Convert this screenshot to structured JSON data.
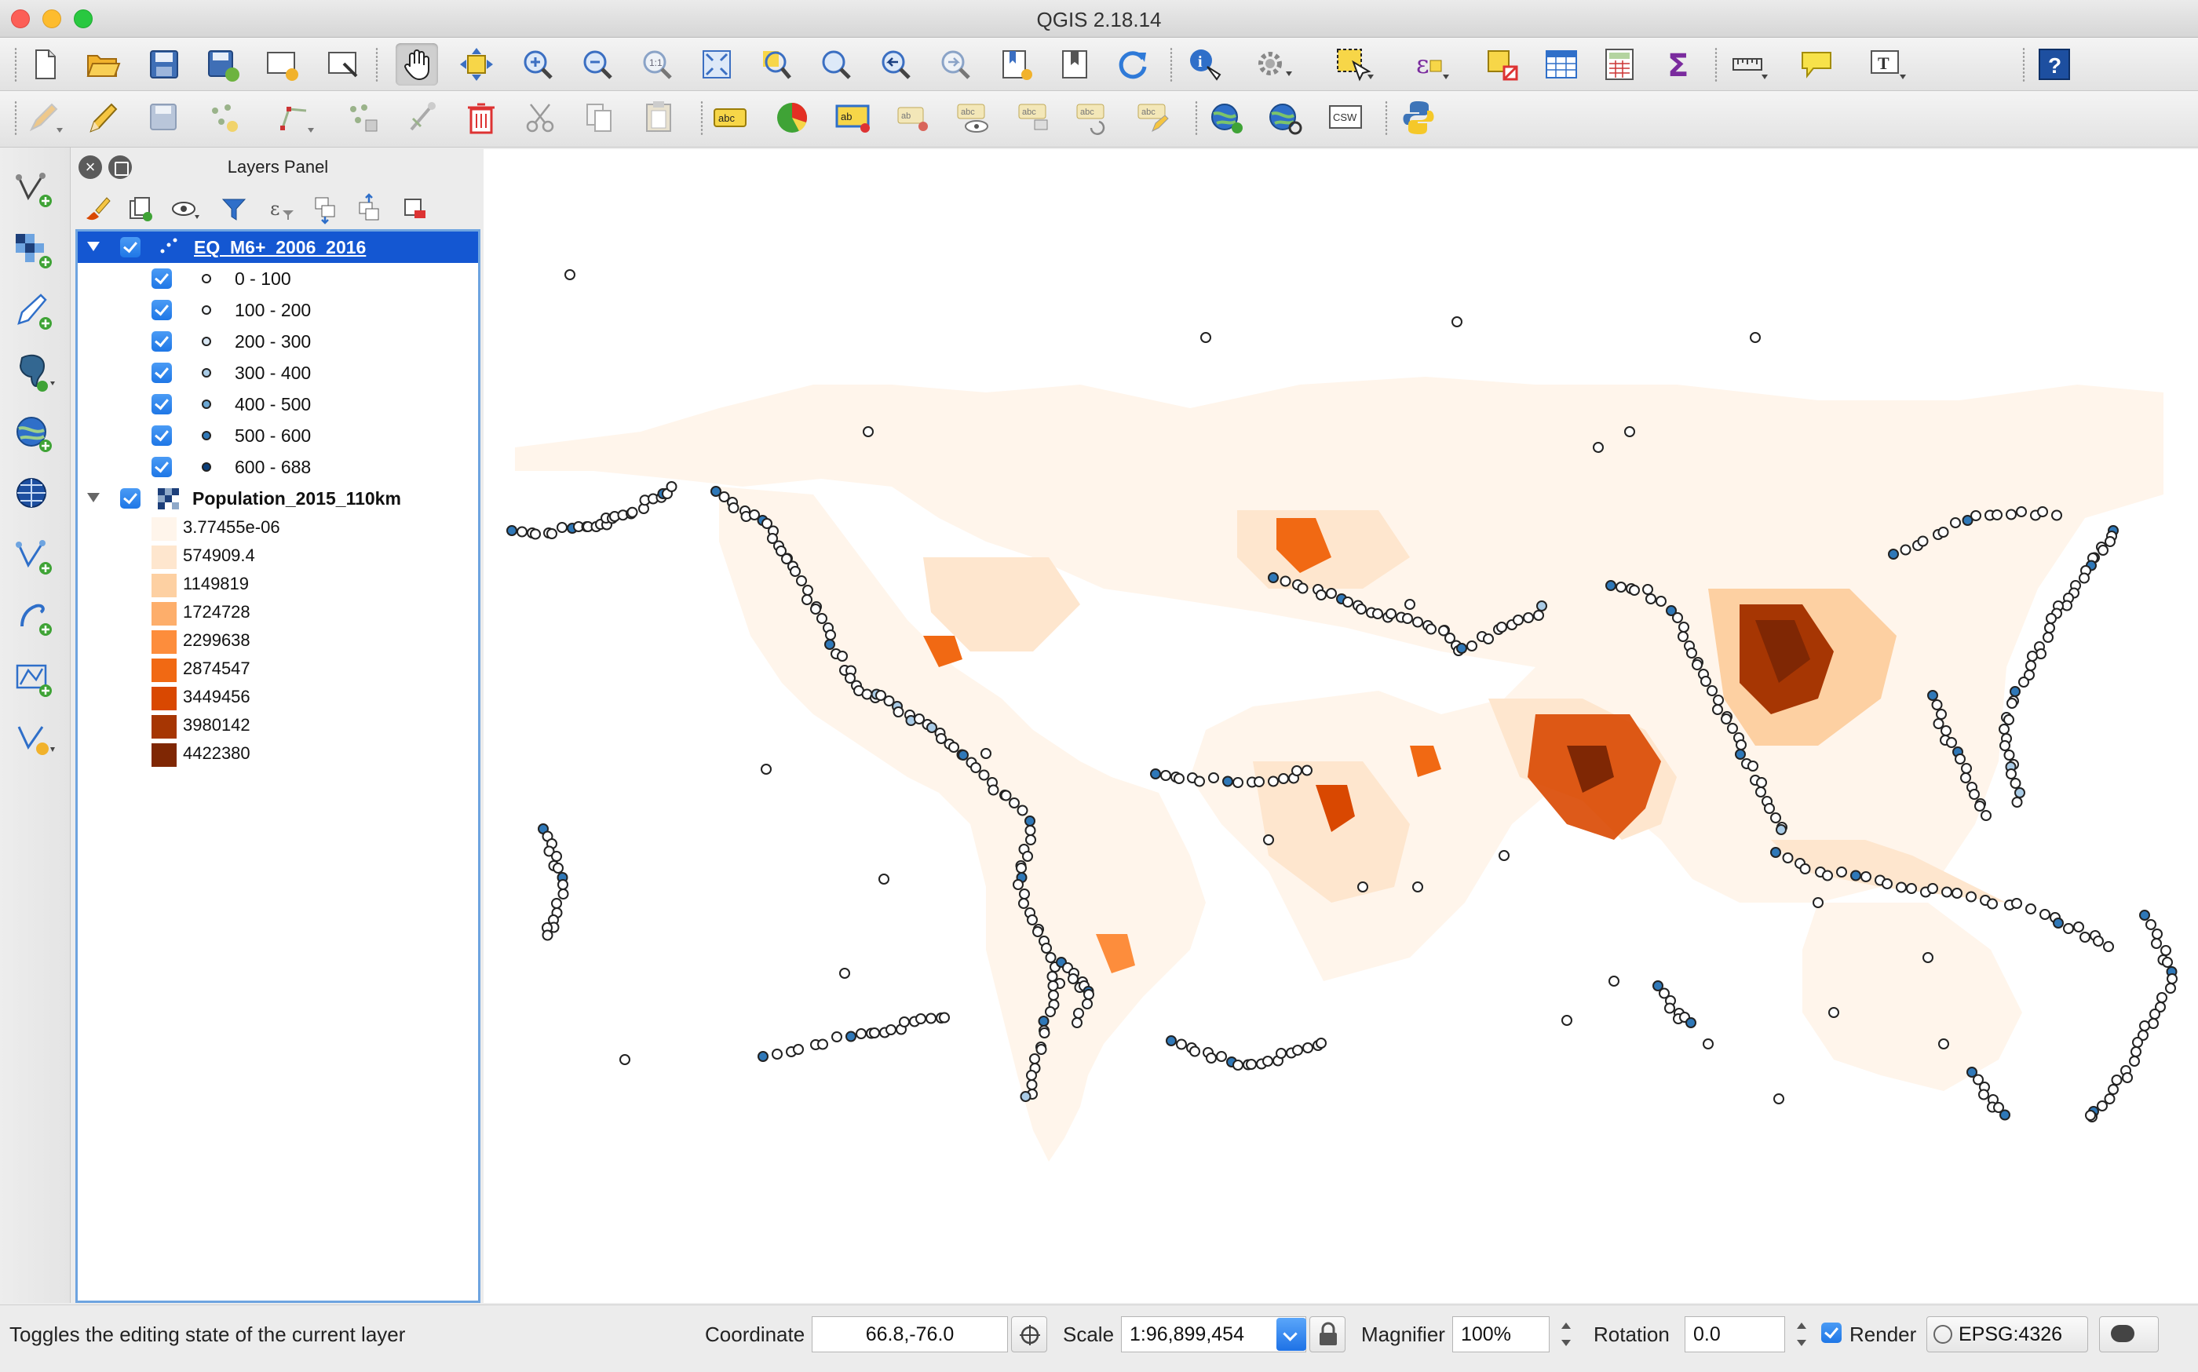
{
  "window": {
    "title": "QGIS 2.18.14"
  },
  "layers_panel": {
    "title": "Layers Panel",
    "layers": [
      {
        "name": "EQ_M6+_2006_2016",
        "checked": true,
        "selected": true,
        "classes": [
          "0 - 100",
          "100 - 200",
          "200 - 300",
          "300 - 400",
          "400 - 500",
          "500 - 600",
          "600 - 688"
        ],
        "class_colors": [
          "#ffffff",
          "#f2f6fb",
          "#d7e6f3",
          "#a9cbe6",
          "#6ba7d3",
          "#2f78b8",
          "#0b3f7a"
        ]
      },
      {
        "name": "Population_2015_110km",
        "checked": true,
        "selected": false,
        "legend": [
          {
            "label": "3.77455e-06",
            "color": "#fff5eb"
          },
          {
            "label": "574909.4",
            "color": "#fee6ce"
          },
          {
            "label": "1149819",
            "color": "#fdd0a2"
          },
          {
            "label": "1724728",
            "color": "#fdae6b"
          },
          {
            "label": "2299638",
            "color": "#fd8d3c"
          },
          {
            "label": "2874547",
            "color": "#f16913"
          },
          {
            "label": "3449456",
            "color": "#d94801"
          },
          {
            "label": "3980142",
            "color": "#a63603"
          },
          {
            "label": "4422380",
            "color": "#7f2704"
          }
        ]
      }
    ]
  },
  "statusbar": {
    "message": "Toggles the editing state of the current layer",
    "coordinate_label": "Coordinate",
    "coordinate_value": "66.8,-76.0",
    "scale_label": "Scale",
    "scale_value": "1:96,899,454",
    "magnifier_label": "Magnifier",
    "magnifier_value": "100%",
    "rotation_label": "Rotation",
    "rotation_value": "0.0",
    "render_label": "Render",
    "crs": "EPSG:4326"
  },
  "icons": {
    "toolbar1": [
      "new-project-icon",
      "open-project-icon",
      "save-project-icon",
      "save-as-icon",
      "new-print-composer-icon",
      "composer-manager-icon",
      "pan-hand-icon",
      "pan-to-selection-icon",
      "zoom-in-icon",
      "zoom-out-icon",
      "zoom-actual-icon",
      "zoom-full-icon",
      "zoom-to-selection-icon",
      "zoom-to-layer-icon",
      "zoom-last-icon",
      "zoom-next-icon",
      "new-bookmark-icon",
      "show-bookmarks-icon",
      "refresh-icon",
      "identify-icon",
      "run-action-icon",
      "select-features-icon",
      "select-by-expression-icon",
      "deselect-icon",
      "attribute-table-icon",
      "field-calculator-icon",
      "statistical-summary-icon",
      "measure-icon",
      "map-tips-icon",
      "text-annotation-icon",
      "help-icon"
    ],
    "toolbar2": [
      "current-edits-icon",
      "toggle-editing-icon",
      "save-layer-edits-icon",
      "add-feature-icon",
      "node-tool-icon",
      "move-feature-icon",
      "digitize-icon",
      "delete-selected-icon",
      "cut-features-icon",
      "copy-features-icon",
      "paste-features-icon",
      "label-icon",
      "diagram-icon",
      "highlight-pinned-labels-icon",
      "pin-labels-icon",
      "show-hide-labels-icon",
      "move-label-icon",
      "rotate-label-icon",
      "change-label-icon",
      "metasearch-icon",
      "wms-search-icon",
      "csw-icon",
      "python-console-icon"
    ],
    "lefttools": [
      "add-vector-layer-icon",
      "add-raster-layer-icon",
      "add-delimited-text-icon",
      "add-postgis-layer-icon",
      "add-wms-layer-icon",
      "add-wcs-layer-icon",
      "add-wfs-layer-icon",
      "add-virtual-layer-icon",
      "add-spatialite-icon",
      "new-shapefile-icon"
    ]
  }
}
